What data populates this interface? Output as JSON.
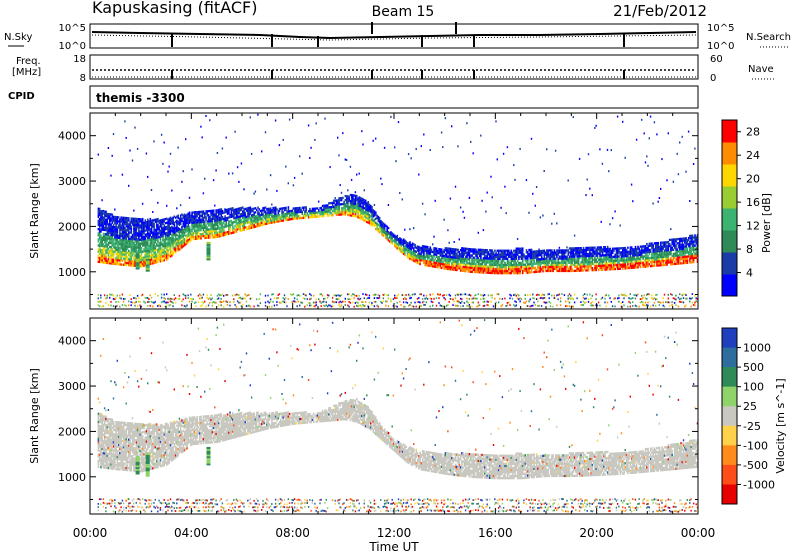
{
  "header": {
    "station": "Kapuskasing (fitACF)",
    "beam": "Beam 15",
    "date": "21/Feb/2012"
  },
  "top_panels": {
    "nsky_label": "N.Sky",
    "nsky_ticks": [
      "10^5",
      "10^0"
    ],
    "nsearch_label": "N.Search",
    "nsearch_ticks": [
      "10^5",
      "10^0"
    ],
    "freq_label_1": "Freq.",
    "freq_label_2": "[MHz]",
    "freq_ticks": [
      "18",
      "8"
    ],
    "nave_label": "Nave",
    "nave_ticks": [
      "60",
      "0"
    ],
    "cpid_label": "CPID",
    "cpid_value": "themis -3300"
  },
  "chart_data": [
    {
      "type": "heatmap",
      "quantity": "power",
      "ylabel": "Slant Range [km]",
      "xlabel": "Time UT",
      "xlim": [
        "00:00",
        "24:00"
      ],
      "ylim": [
        180,
        4500
      ],
      "x_ticks": [
        "00:00",
        "04:00",
        "08:00",
        "12:00",
        "16:00",
        "20:00",
        "00:00"
      ],
      "y_ticks": [
        1000,
        2000,
        3000,
        4000
      ],
      "colorbar": {
        "label": "Power [dB]",
        "range": [
          0,
          30
        ],
        "ticks": [
          4,
          8,
          12,
          16,
          20,
          24,
          28
        ],
        "colors": [
          "#0000ff",
          "#1a3ca8",
          "#2e8b57",
          "#3cb371",
          "#9acd32",
          "#ffd700",
          "#ff8c00",
          "#ff0000"
        ]
      },
      "echo_band": {
        "hours": [
          0.3,
          1,
          2,
          3,
          4,
          5,
          6,
          7,
          8,
          9,
          10,
          10.5,
          11,
          11.5,
          12,
          12.5,
          13,
          14,
          15,
          16,
          17,
          18,
          19,
          20,
          21,
          22,
          23,
          23.9
        ],
        "lower_km": [
          1200,
          1150,
          1100,
          1250,
          1700,
          1750,
          1900,
          2050,
          2150,
          2200,
          2250,
          2200,
          2050,
          1800,
          1550,
          1300,
          1150,
          1050,
          980,
          950,
          950,
          1000,
          1000,
          1020,
          1050,
          1100,
          1150,
          1200
        ],
        "upper_km": [
          2400,
          2200,
          2150,
          2150,
          2300,
          2350,
          2400,
          2400,
          2400,
          2400,
          2650,
          2700,
          2500,
          2100,
          1800,
          1650,
          1550,
          1500,
          1500,
          1450,
          1500,
          1450,
          1500,
          1550,
          1500,
          1600,
          1700,
          1800
        ],
        "peak_power_dB": 28
      }
    },
    {
      "type": "heatmap",
      "quantity": "velocity",
      "ylabel": "Slant Range [km]",
      "xlabel": "Time UT",
      "xlim": [
        "00:00",
        "24:00"
      ],
      "ylim": [
        180,
        4500
      ],
      "x_ticks": [
        "00:00",
        "04:00",
        "08:00",
        "12:00",
        "16:00",
        "20:00",
        "00:00"
      ],
      "y_ticks": [
        1000,
        2000,
        3000,
        4000
      ],
      "colorbar": {
        "label": "Velocity [m s^-1]",
        "ticks": [
          "1000",
          "500",
          "100",
          "25",
          "-25",
          "-100",
          "-500",
          "-1000"
        ],
        "colors": [
          "#1f3fbf",
          "#2d6e9e",
          "#2e8b57",
          "#8fd36b",
          "#c8c8c0",
          "#ffd24a",
          "#ff8c1a",
          "#ff4d1a",
          "#e60000"
        ]
      },
      "dominant_value": "ground scatter (grey, -25 to 25 m/s)"
    }
  ],
  "colors": {
    "axis": "#000000",
    "ground_scatter": "#c8c8c0"
  }
}
